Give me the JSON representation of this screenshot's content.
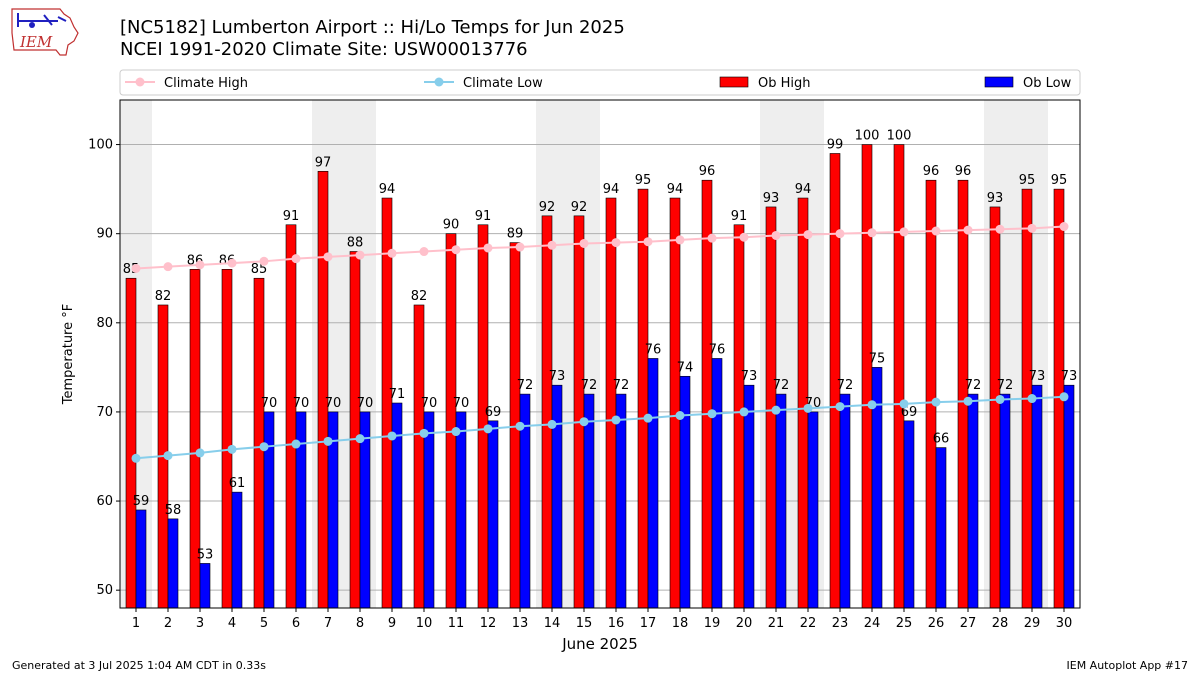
{
  "header": {
    "title_line1": "[NC5182] Lumberton Airport :: Hi/Lo Temps for Jun 2025",
    "title_line2": "NCEI 1991-2020 Climate Site: USW00013776",
    "logo_text": "IEM"
  },
  "footer": {
    "left": "Generated at 3 Jul 2025 1:04 AM CDT in 0.33s",
    "right": "IEM Autoplot App #17"
  },
  "chart_data": {
    "type": "bar",
    "xlabel": "June 2025",
    "ylabel": "Temperature °F",
    "ylim": [
      48,
      105
    ],
    "yticks": [
      50,
      60,
      70,
      80,
      90,
      100
    ],
    "grid": true,
    "legend_position": "top",
    "weekend_shading_days": [
      1,
      7,
      8,
      14,
      15,
      21,
      22,
      28,
      29
    ],
    "categories": [
      "1",
      "2",
      "3",
      "4",
      "5",
      "6",
      "7",
      "8",
      "9",
      "10",
      "11",
      "12",
      "13",
      "14",
      "15",
      "16",
      "17",
      "18",
      "19",
      "20",
      "21",
      "22",
      "23",
      "24",
      "25",
      "26",
      "27",
      "28",
      "29",
      "30"
    ],
    "series": [
      {
        "name": "Climate High",
        "kind": "line",
        "color": "#ffc0cb",
        "values": [
          86.1,
          86.3,
          86.5,
          86.7,
          86.9,
          87.2,
          87.4,
          87.6,
          87.8,
          88.0,
          88.2,
          88.4,
          88.5,
          88.7,
          88.9,
          89.0,
          89.1,
          89.3,
          89.5,
          89.6,
          89.8,
          89.9,
          90.0,
          90.1,
          90.2,
          90.3,
          90.4,
          90.5,
          90.6,
          90.8
        ]
      },
      {
        "name": "Climate Low",
        "kind": "line",
        "color": "#87ceeb",
        "values": [
          64.8,
          65.1,
          65.4,
          65.8,
          66.1,
          66.4,
          66.7,
          67.0,
          67.3,
          67.6,
          67.8,
          68.1,
          68.4,
          68.6,
          68.9,
          69.1,
          69.3,
          69.6,
          69.8,
          70.0,
          70.2,
          70.4,
          70.6,
          70.8,
          70.9,
          71.1,
          71.2,
          71.4,
          71.5,
          71.7
        ]
      },
      {
        "name": "Ob High",
        "kind": "bar",
        "color": "#ff0000",
        "values": [
          85,
          82,
          86,
          86,
          85,
          91,
          97,
          88,
          94,
          82,
          90,
          91,
          89,
          92,
          92,
          94,
          95,
          94,
          96,
          91,
          93,
          94,
          99,
          100,
          100,
          96,
          96,
          93,
          95,
          95
        ]
      },
      {
        "name": "Ob Low",
        "kind": "bar",
        "color": "#0000ff",
        "values": [
          59,
          58,
          53,
          61,
          70,
          70,
          70,
          70,
          71,
          70,
          70,
          69,
          72,
          73,
          72,
          72,
          76,
          74,
          76,
          73,
          72,
          70,
          72,
          75,
          69,
          66,
          72,
          72,
          73,
          73
        ]
      }
    ]
  }
}
